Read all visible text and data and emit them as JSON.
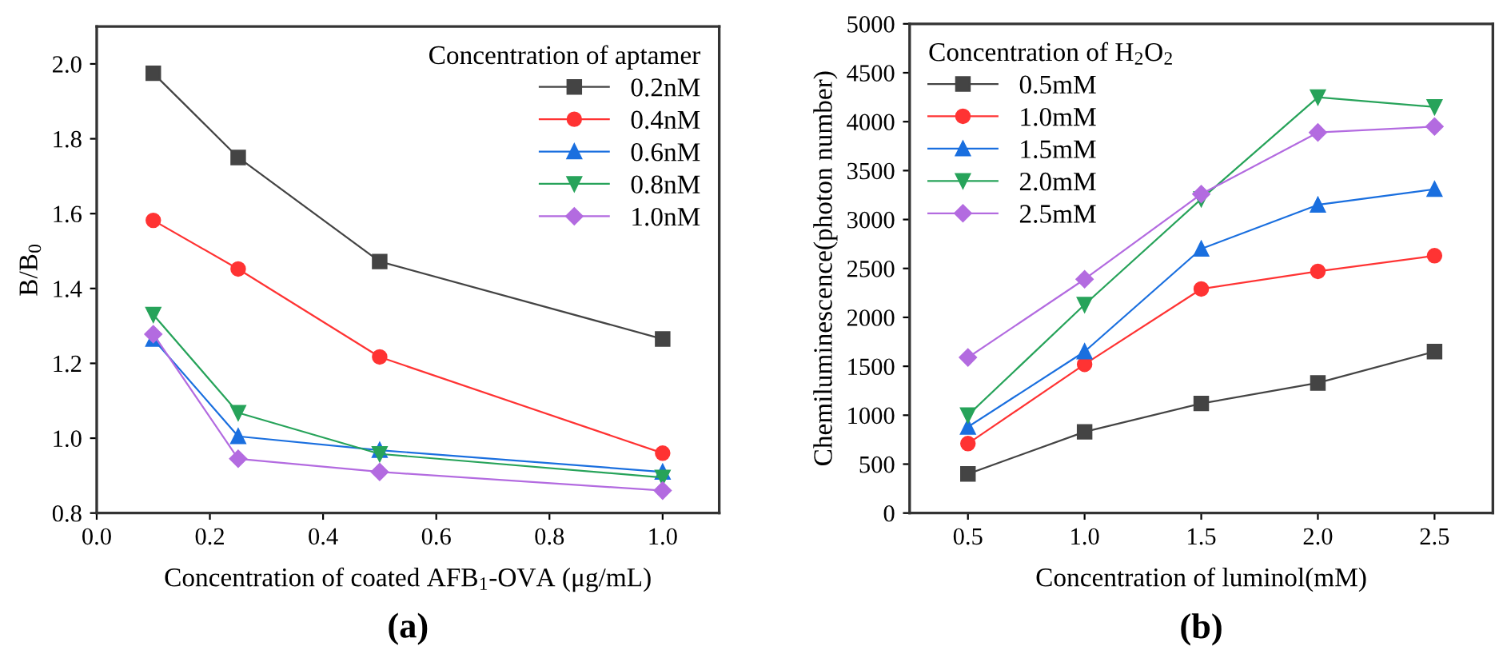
{
  "chart_data": [
    {
      "type": "line",
      "xlabel": "Concentration of coated AFB$_{1}$-OVA (μg/mL)",
      "ylabel": "B/B$_{0}$",
      "legend_title": "Concentration of aptamer",
      "legend": "top right",
      "annotations": [
        "(a)"
      ],
      "x": [
        0.1,
        0.25,
        0.5,
        1.0
      ],
      "xlim": [
        0.0,
        1.1
      ],
      "xticks": [
        {
          "value": 0.0,
          "label": "0.0"
        },
        0.2,
        0.4,
        0.6,
        0.8,
        {
          "value": 1.0,
          "label": "1.0"
        }
      ],
      "ylim": [
        0.8,
        2.1
      ],
      "yticks": [
        0.8,
        {
          "value": 1.0,
          "label": "1.0"
        },
        1.2,
        1.4,
        1.6,
        1.8,
        {
          "value": 2.0,
          "label": "2.0"
        }
      ],
      "series": [
        {
          "name": "0.2nM",
          "color": "#444444",
          "marker": "square",
          "values": [
            1.975,
            1.75,
            1.472,
            1.265
          ]
        },
        {
          "name": "0.4nM",
          "color": "#ff3333",
          "marker": "circle",
          "values": [
            1.582,
            1.452,
            1.217,
            0.96
          ]
        },
        {
          "name": "0.6nM",
          "color": "#1a6fdf",
          "marker": "triangle",
          "values": [
            1.265,
            1.005,
            0.968,
            0.91
          ]
        },
        {
          "name": "0.8nM",
          "color": "#27a35a",
          "marker": "triangle_down",
          "values": [
            1.33,
            1.068,
            0.958,
            0.895
          ]
        },
        {
          "name": "1.0nM",
          "color": "#b36be0",
          "marker": "diamond",
          "values": [
            1.278,
            0.945,
            0.91,
            0.86
          ]
        }
      ]
    },
    {
      "type": "line",
      "xlabel": "Concentration of luminol(mM)",
      "ylabel": "Chemiluminescence(photon number)",
      "legend_title": "Concentration of H$_{2}$O$_{2}$",
      "legend": "top left",
      "annotations": [
        "(b)"
      ],
      "x": [
        0.5,
        1.0,
        1.5,
        2.0,
        2.5
      ],
      "xlim": [
        0.25,
        2.75
      ],
      "xticks": [
        0.5,
        {
          "value": 1.0,
          "label": "1.0"
        },
        1.5,
        {
          "value": 2.0,
          "label": "2.0"
        },
        2.5
      ],
      "ylim": [
        0,
        5000
      ],
      "yticks": [
        0,
        500,
        1000,
        1500,
        2000,
        2500,
        3000,
        3500,
        4000,
        4500,
        5000
      ],
      "series": [
        {
          "name": "0.5mM",
          "color": "#444444",
          "marker": "square",
          "values": [
            400,
            830,
            1120,
            1330,
            1650
          ]
        },
        {
          "name": "1.0mM",
          "color": "#ff3333",
          "marker": "circle",
          "values": [
            710,
            1520,
            2290,
            2470,
            2630
          ]
        },
        {
          "name": "1.5mM",
          "color": "#1a6fdf",
          "marker": "triangle",
          "values": [
            880,
            1650,
            2700,
            3150,
            3310
          ]
        },
        {
          "name": "2.0mM",
          "color": "#27a35a",
          "marker": "triangle_down",
          "values": [
            1000,
            2130,
            3210,
            4250,
            4150
          ]
        },
        {
          "name": "2.5mM",
          "color": "#b36be0",
          "marker": "diamond",
          "values": [
            1590,
            2390,
            3260,
            3890,
            3950
          ]
        }
      ]
    }
  ]
}
